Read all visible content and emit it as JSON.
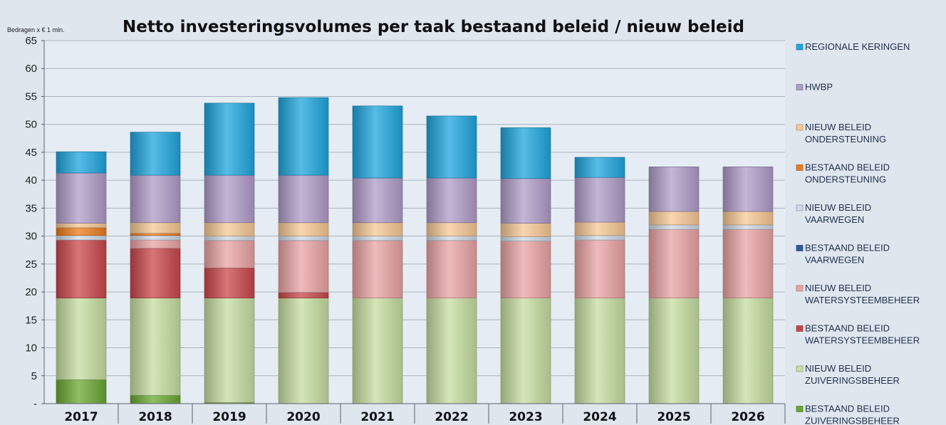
{
  "chart_data": {
    "type": "bar",
    "stacked": true,
    "title": "Netto investeringsvolumes per taak  bestaand beleid / nieuw beleid",
    "unit_label": "Bedragen x € 1 mln.",
    "ylim": [
      0,
      65
    ],
    "ytick_step": 5,
    "ytick_labels": [
      "-",
      "5",
      "10",
      "15",
      "20",
      "25",
      "30",
      "35",
      "40",
      "45",
      "50",
      "55",
      "60",
      "65"
    ],
    "grid": true,
    "legend_position": "right",
    "categories": [
      "2017",
      "2018",
      "2019",
      "2020",
      "2021",
      "2022",
      "2023",
      "2024",
      "2025",
      "2026"
    ],
    "series": [
      {
        "name": "BESTAAND BELEID ZUIVERINGSBEHEER",
        "lines": [
          "BESTAAND BELEID",
          "ZUIVERINGSBEHEER"
        ],
        "color": "#6aa832",
        "values": [
          4.3,
          1.5,
          0.2,
          0,
          0,
          0,
          0,
          0,
          0,
          0
        ]
      },
      {
        "name": "NIEUW BELEID ZUIVERINGSBEHEER",
        "lines": [
          "NIEUW BELEID",
          "ZUIVERINGSBEHEER"
        ],
        "color": "#c6dea0",
        "values": [
          14.6,
          17.4,
          18.7,
          18.9,
          18.9,
          18.9,
          18.9,
          18.9,
          18.9,
          18.9
        ]
      },
      {
        "name": "BESTAAND BELEID WATERSYSTEEMBEHEER",
        "lines": [
          "BESTAAND BELEID",
          "WATERSYSTEEMBEHEER"
        ],
        "color": "#c9474a",
        "values": [
          10.4,
          8.9,
          5.4,
          1.0,
          0,
          0,
          0,
          0,
          0,
          0
        ]
      },
      {
        "name": "NIEUW BELEID WATERSYSTEEMBEHEER",
        "lines": [
          "NIEUW BELEID",
          "WATERSYSTEEMBEHEER"
        ],
        "color": "#eaa3a4",
        "values": [
          0,
          1.5,
          4.9,
          9.3,
          10.3,
          10.3,
          10.2,
          10.4,
          12.3,
          12.3
        ]
      },
      {
        "name": "BESTAAND BELEID VAARWEGEN",
        "lines": [
          "BESTAAND BELEID",
          "VAARWEGEN"
        ],
        "color": "#2e5a9a",
        "values": [
          0,
          0,
          0,
          0,
          0,
          0,
          0,
          0,
          0,
          0
        ]
      },
      {
        "name": "NIEUW BELEID VAARWEGEN",
        "lines": [
          "NIEUW BELEID",
          "VAARWEGEN"
        ],
        "color": "#cdd9e8",
        "values": [
          0.8,
          0.8,
          0.8,
          0.8,
          0.8,
          0.8,
          0.8,
          0.8,
          0.8,
          0.8
        ]
      },
      {
        "name": "BESTAAND BELEID ONDERSTEUNING",
        "lines": [
          "BESTAAND BELEID",
          "ONDERSTEUNING"
        ],
        "color": "#ee7b1c",
        "values": [
          1.4,
          0.4,
          0,
          0,
          0,
          0,
          0,
          0,
          0,
          0
        ]
      },
      {
        "name": "NIEUW BELEID ONDERSTEUNING",
        "lines": [
          "NIEUW BELEID",
          "ONDERSTEUNING"
        ],
        "color": "#f7c894",
        "values": [
          0.8,
          1.9,
          2.4,
          2.4,
          2.4,
          2.4,
          2.4,
          2.4,
          2.4,
          2.4
        ]
      },
      {
        "name": "HWBP",
        "lines": [
          "HWBP"
        ],
        "color": "#b09cc8",
        "values": [
          9.0,
          8.5,
          8.5,
          8.5,
          8.0,
          8.0,
          8.0,
          8.0,
          8.0,
          8.0
        ]
      },
      {
        "name": "REGIONALE KERINGEN",
        "lines": [
          "REGIONALE KERINGEN"
        ],
        "color": "#1ea6de",
        "values": [
          3.8,
          7.7,
          12.9,
          13.9,
          12.9,
          11.1,
          9.1,
          3.6,
          0,
          0
        ]
      }
    ]
  }
}
